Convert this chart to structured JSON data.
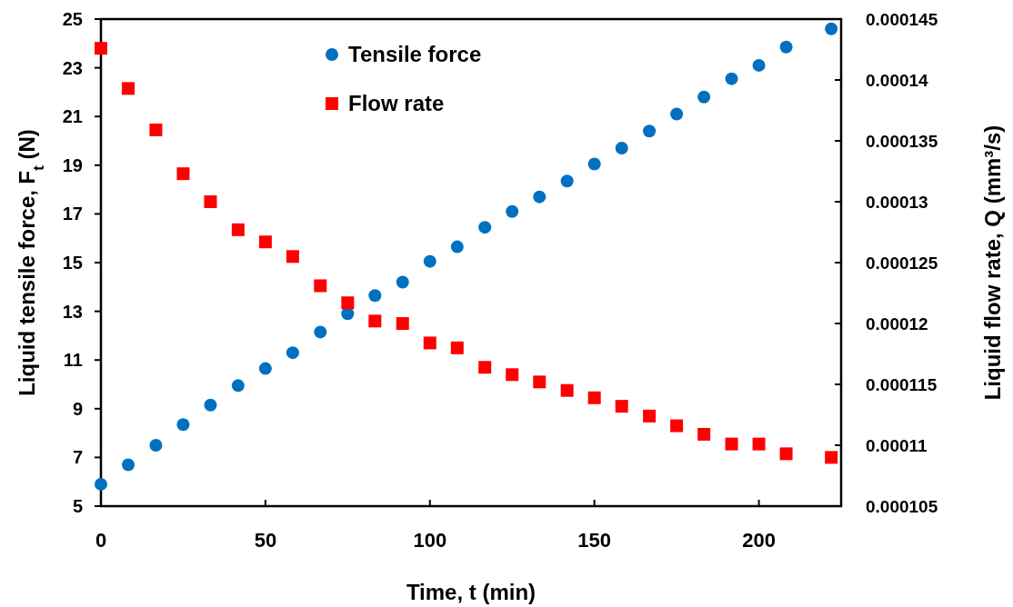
{
  "chart_data": {
    "type": "scatter",
    "xlabel": "Time, t (min)",
    "ylabel": "Liquid tensile force, F$_{t}$ (N)",
    "y2label": "Liquid flow rate, Q (mm³/s)",
    "x": [
      0,
      8.3,
      16.7,
      25,
      33.3,
      41.7,
      50,
      58.3,
      66.7,
      75,
      83.3,
      91.7,
      100,
      108.3,
      116.7,
      125,
      133.3,
      141.7,
      150,
      158.3,
      166.7,
      175,
      183.3,
      191.7,
      200,
      208.3,
      222
    ],
    "xlim": [
      0,
      225
    ],
    "xticks": [
      0,
      50,
      100,
      150,
      200
    ],
    "ylim": [
      5,
      25
    ],
    "yticks": [
      5,
      7,
      9,
      11,
      13,
      15,
      17,
      19,
      21,
      23,
      25
    ],
    "y2lim": [
      0.000105,
      0.000145
    ],
    "y2ticks": [
      0.000105,
      0.00011,
      0.000115,
      0.00012,
      0.000125,
      0.00013,
      0.000135,
      0.00014,
      0.000145
    ],
    "grid": false,
    "legend": "top",
    "series": [
      {
        "name": "Tensile force",
        "color": "#0070c0",
        "marker": "circle",
        "values": [
          5.9,
          6.7,
          7.5,
          8.35,
          9.15,
          9.95,
          10.65,
          11.3,
          12.15,
          12.9,
          13.65,
          14.2,
          15.05,
          15.65,
          16.45,
          17.1,
          17.7,
          18.35,
          19.05,
          19.7,
          20.4,
          21.1,
          21.8,
          22.55,
          23.1,
          23.85,
          24.6
        ]
      },
      {
        "name": "Flow rate",
        "color": "#ff0000",
        "marker": "square",
        "axis": "y2",
        "values": [
          0.0001426,
          0.0001393,
          0.0001359,
          0.0001323,
          0.00013,
          0.0001277,
          0.0001267,
          0.0001255,
          0.0001231,
          0.0001217,
          0.0001202,
          0.00012,
          0.0001184,
          0.000118,
          0.0001164,
          0.0001158,
          0.0001152,
          0.0001145,
          0.0001139,
          0.0001132,
          0.0001124,
          0.0001116,
          0.0001109,
          0.0001101,
          0.0001101,
          0.0001093,
          0.000109
        ]
      }
    ]
  }
}
